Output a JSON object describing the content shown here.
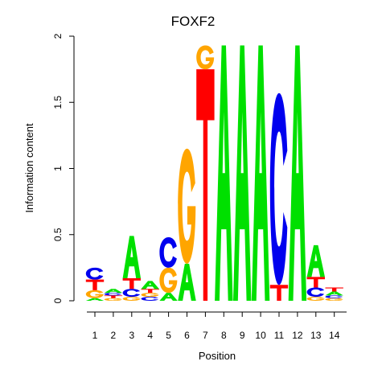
{
  "chart_data": {
    "type": "sequence_logo",
    "title": "FOXF2",
    "xlabel": "Position",
    "ylabel": "Information content",
    "ylim": [
      0,
      2
    ],
    "yticks": [
      {
        "value": 0,
        "label": "0"
      },
      {
        "value": 0.5,
        "label": "0.5"
      },
      {
        "value": 1,
        "label": "1"
      },
      {
        "value": 1.5,
        "label": "1.5"
      },
      {
        "value": 2,
        "label": "2"
      }
    ],
    "positions": [
      "1",
      "2",
      "3",
      "4",
      "5",
      "6",
      "7",
      "8",
      "9",
      "10",
      "11",
      "12",
      "13",
      "14"
    ],
    "colors": {
      "A": "#00e000",
      "C": "#0000ee",
      "G": "#ffa500",
      "T": "#ff0000"
    },
    "stacks": [
      [
        {
          "base": "A",
          "value": 0.02
        },
        {
          "base": "G",
          "value": 0.06
        },
        {
          "base": "T",
          "value": 0.08
        },
        {
          "base": "C",
          "value": 0.09
        }
      ],
      [
        {
          "base": "G",
          "value": 0.02
        },
        {
          "base": "T",
          "value": 0.02
        },
        {
          "base": "C",
          "value": 0.02
        },
        {
          "base": "A",
          "value": 0.03
        }
      ],
      [
        {
          "base": "G",
          "value": 0.03
        },
        {
          "base": "C",
          "value": 0.06
        },
        {
          "base": "T",
          "value": 0.08
        },
        {
          "base": "A",
          "value": 0.32
        }
      ],
      [
        {
          "base": "C",
          "value": 0.03
        },
        {
          "base": "G",
          "value": 0.03
        },
        {
          "base": "T",
          "value": 0.03
        },
        {
          "base": "A",
          "value": 0.06
        }
      ],
      [
        {
          "base": "A",
          "value": 0.06
        },
        {
          "base": "G",
          "value": 0.19
        },
        {
          "base": "C",
          "value": 0.23
        }
      ],
      [
        {
          "base": "A",
          "value": 0.28
        },
        {
          "base": "G",
          "value": 0.87
        }
      ],
      [
        {
          "base": "T",
          "value": 1.75
        },
        {
          "base": "G",
          "value": 0.18
        }
      ],
      [
        {
          "base": "A",
          "value": 1.93
        }
      ],
      [
        {
          "base": "A",
          "value": 1.93
        }
      ],
      [
        {
          "base": "A",
          "value": 1.93
        }
      ],
      [
        {
          "base": "T",
          "value": 0.12
        },
        {
          "base": "C",
          "value": 1.45
        }
      ],
      [
        {
          "base": "A",
          "value": 1.93
        }
      ],
      [
        {
          "base": "G",
          "value": 0.03
        },
        {
          "base": "C",
          "value": 0.07
        },
        {
          "base": "T",
          "value": 0.08
        },
        {
          "base": "A",
          "value": 0.24
        }
      ],
      [
        {
          "base": "G",
          "value": 0.02
        },
        {
          "base": "C",
          "value": 0.02
        },
        {
          "base": "A",
          "value": 0.03
        },
        {
          "base": "T",
          "value": 0.03
        }
      ]
    ]
  }
}
